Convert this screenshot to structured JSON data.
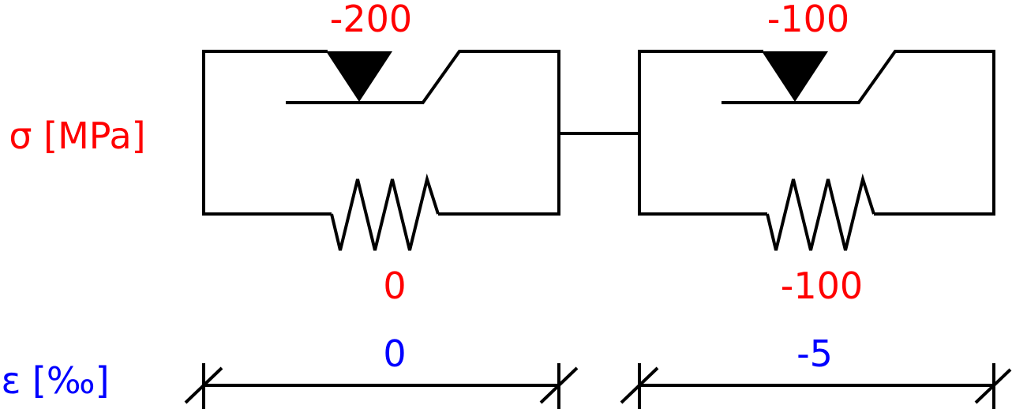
{
  "axis_labels": {
    "stress": "σ [MPa]",
    "strain": "ε [‰]"
  },
  "elements": [
    {
      "slider_stress": "-200",
      "spring_stress": "0",
      "strain": "0"
    },
    {
      "slider_stress": "-100",
      "spring_stress": "-100",
      "strain": "-5"
    }
  ],
  "colors": {
    "stress": "#ff0000",
    "strain": "#0000ff",
    "line": "#000000",
    "background": "#ffffff"
  }
}
